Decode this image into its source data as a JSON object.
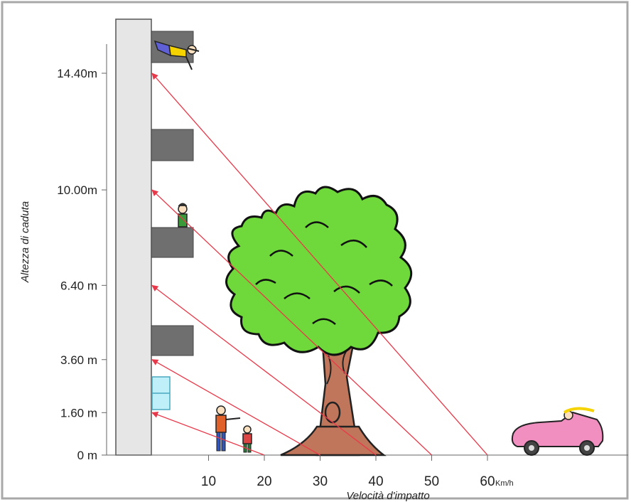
{
  "diagram": {
    "y_axis_title": "Altezza di caduta",
    "x_axis_title": "Velocità d'impatto",
    "x_unit": "Km/h",
    "heights": [
      {
        "label": "0 m",
        "meters": 0
      },
      {
        "label": "1.60 m",
        "meters": 1.6
      },
      {
        "label": "3.60 m",
        "meters": 3.6
      },
      {
        "label": "6.40 m",
        "meters": 6.4
      },
      {
        "label": "10.00m",
        "meters": 10.0
      },
      {
        "label": "14.40m",
        "meters": 14.4
      }
    ],
    "speeds": [
      {
        "label": "10",
        "kmh": 10
      },
      {
        "label": "20",
        "kmh": 20
      },
      {
        "label": "30",
        "kmh": 30
      },
      {
        "label": "40",
        "kmh": 40
      },
      {
        "label": "50",
        "kmh": 50
      },
      {
        "label": "60",
        "kmh": 60
      }
    ],
    "equivalences": [
      {
        "speed_kmh": 20,
        "height_m": 1.6
      },
      {
        "speed_kmh": 30,
        "height_m": 3.6
      },
      {
        "speed_kmh": 40,
        "height_m": 6.4
      },
      {
        "speed_kmh": 50,
        "height_m": 10.0
      },
      {
        "speed_kmh": 60,
        "height_m": 14.4
      }
    ],
    "colors": {
      "arrow": "#e8394a",
      "building": "#e6e6e6",
      "balcony": "#6f6f6f",
      "window": "#bfeff8",
      "foliage": "#6fd83a",
      "trunk": "#c0765a",
      "car": "#f08fc0"
    },
    "illustrations": [
      "falling-person-icon",
      "person-on-balcony-icon",
      "adult-and-child-icon",
      "tree-icon",
      "car-icon"
    ]
  }
}
